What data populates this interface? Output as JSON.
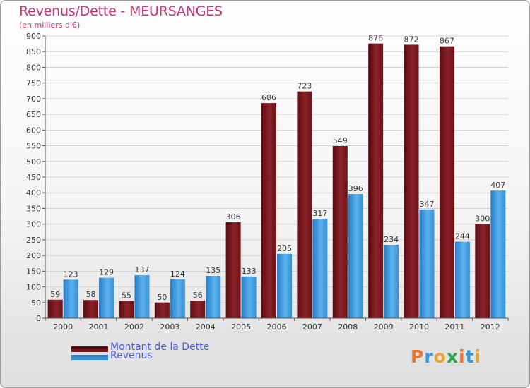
{
  "title": "Revenus/Dette - MEURSANGES",
  "subtitle": "(en milliers d'€)",
  "colors": {
    "dette": "#7a1a1f",
    "revenus": "#3d9be0",
    "title": "#c2317a",
    "legend_text": "#4a5fe0"
  },
  "legend": {
    "dette_label": "Montant de la Dette",
    "revenus_label": "Revenus"
  },
  "logo": {
    "text": "Proxiti",
    "letters": [
      "P",
      "r",
      "o",
      "x",
      "i",
      "t",
      "i"
    ]
  },
  "chart_data": {
    "type": "bar",
    "title": "Revenus/Dette - MEURSANGES",
    "ylabel": "(en milliers d'€)",
    "xlabel": "",
    "ylim": [
      0,
      900
    ],
    "yticks": [
      0,
      50,
      100,
      150,
      200,
      250,
      300,
      350,
      400,
      450,
      500,
      550,
      600,
      650,
      700,
      750,
      800,
      850,
      900
    ],
    "grid": true,
    "legend_position": "bottom-left",
    "categories": [
      "2000",
      "2001",
      "2002",
      "2003",
      "2004",
      "2005",
      "2006",
      "2007",
      "2008",
      "2009",
      "2010",
      "2011",
      "2012"
    ],
    "series": [
      {
        "name": "Montant de la Dette",
        "values": [
          59,
          58,
          55,
          50,
          56,
          306,
          686,
          723,
          549,
          876,
          872,
          867,
          300
        ]
      },
      {
        "name": "Revenus",
        "values": [
          123,
          129,
          137,
          124,
          135,
          133,
          205,
          317,
          396,
          234,
          347,
          244,
          407
        ]
      }
    ]
  }
}
